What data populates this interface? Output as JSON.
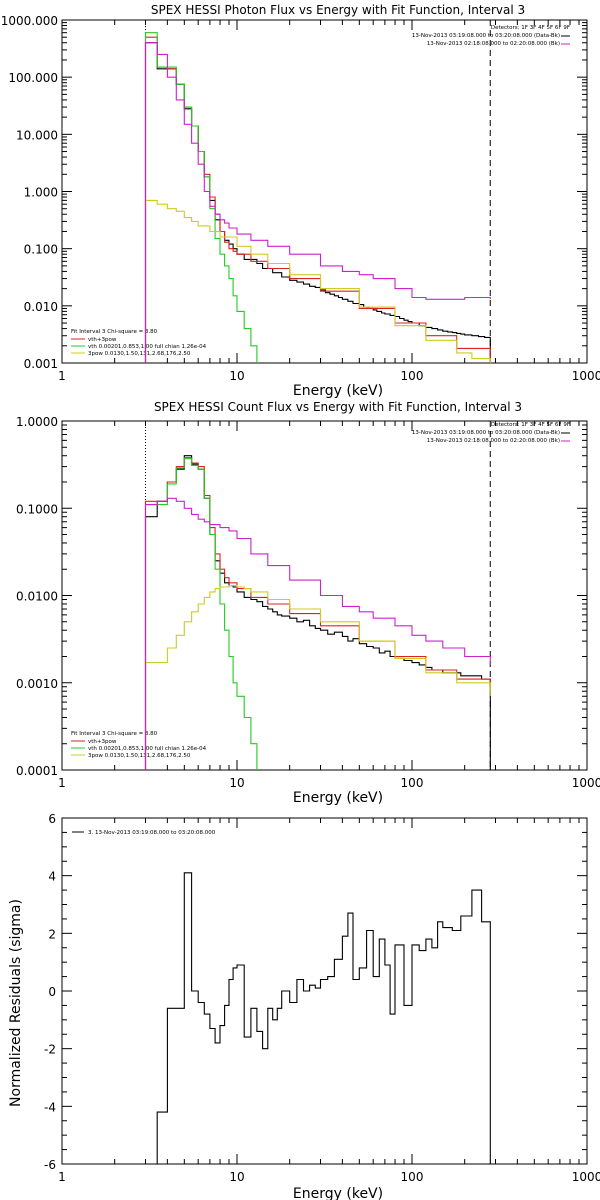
{
  "colors": {
    "black": "#000000",
    "red": "#dd2222",
    "green": "#22cc22",
    "magenta": "#cc22cc",
    "yellow": "#cccc22"
  },
  "chart_data": [
    {
      "type": "line",
      "title": "SPEX HESSI Photon Flux vs Energy with Fit Function, Interval 3",
      "xlabel": "Energy (keV)",
      "ylabel": "",
      "xscale": "log",
      "yscale": "log",
      "xlim": [
        1,
        1000
      ],
      "ylim": [
        0.001,
        1000
      ],
      "xticks": [
        "1",
        "10",
        "100",
        "1000"
      ],
      "yticks": [
        "0.001",
        "0.010",
        "0.100",
        "1.000",
        "10.000",
        "100.000",
        "1000.000"
      ],
      "top_legend": [
        "Detectors: 1F 3F 4F 5F 6F 9F",
        "13-Nov-2013 03:19:08.000 to 03:20:08.000 (Data-Bk)",
        "13-Nov-2013 02:18:08.000 to 02:20:08.000 (Bk)"
      ],
      "fit_legend": [
        "Fit Interval 3   Chi-square = 3.80",
        "vth+3pow",
        "vth 0.00201,0.853,1.00  full chian 1.26e-04",
        "3pow 0.0130,1.50,131,2.68,176,2.50"
      ],
      "series": [
        {
          "name": "data",
          "color": "black",
          "x": [
            3,
            3.5,
            4,
            4.5,
            5,
            5.5,
            6,
            6.5,
            7,
            7.5,
            8,
            8.5,
            9,
            9.5,
            10,
            11,
            12,
            13,
            14,
            15,
            16,
            17,
            18,
            19,
            20,
            22,
            24,
            26,
            28,
            30,
            32,
            34,
            36,
            38,
            40,
            43,
            46,
            50,
            53,
            56,
            60,
            63,
            67,
            70,
            75,
            80,
            85,
            90,
            95,
            100,
            110,
            120,
            130,
            140,
            150,
            160,
            170,
            180,
            190,
            200,
            220,
            240,
            260,
            280
          ],
          "y": [
            400,
            140,
            140,
            75,
            28,
            14,
            5,
            1.8,
            0.7,
            0.32,
            0.2,
            0.14,
            0.12,
            0.1,
            0.08,
            0.065,
            0.065,
            0.055,
            0.045,
            0.045,
            0.038,
            0.038,
            0.032,
            0.032,
            0.028,
            0.026,
            0.024,
            0.022,
            0.021,
            0.019,
            0.017,
            0.016,
            0.015,
            0.014,
            0.013,
            0.012,
            0.011,
            0.0105,
            0.0095,
            0.009,
            0.0085,
            0.008,
            0.0075,
            0.0072,
            0.0068,
            0.0065,
            0.006,
            0.0056,
            0.0053,
            0.005,
            0.0045,
            0.0042,
            0.004,
            0.0038,
            0.0036,
            0.0035,
            0.0034,
            0.0033,
            0.0032,
            0.0031,
            0.003,
            0.0029,
            0.0028,
            0.001
          ]
        },
        {
          "name": "vth+3pow",
          "color": "red",
          "x": [
            3,
            3.5,
            4,
            4.5,
            5,
            5.5,
            6,
            6.5,
            7,
            7.5,
            8,
            8.5,
            9,
            9.5,
            10,
            12,
            15,
            20,
            30,
            50,
            80,
            120,
            180,
            280
          ],
          "y": [
            500,
            150,
            140,
            75,
            30,
            14,
            5,
            2,
            0.8,
            0.4,
            0.2,
            0.13,
            0.1,
            0.09,
            0.08,
            0.06,
            0.045,
            0.03,
            0.018,
            0.009,
            0.005,
            0.003,
            0.0018,
            0.001
          ]
        },
        {
          "name": "vth",
          "color": "green",
          "x": [
            3,
            3.5,
            4,
            4.5,
            5,
            5.5,
            6,
            6.5,
            7,
            7.5,
            8,
            8.5,
            9,
            9.5,
            10,
            11,
            12,
            13
          ],
          "y": [
            600,
            150,
            150,
            75,
            30,
            14,
            5,
            1.8,
            0.5,
            0.15,
            0.08,
            0.05,
            0.03,
            0.015,
            0.008,
            0.004,
            0.002,
            0.001
          ]
        },
        {
          "name": "3pow",
          "color": "yellow",
          "x": [
            3,
            3.5,
            4,
            4.5,
            5,
            5.5,
            6,
            7,
            8,
            10,
            12,
            15,
            20,
            30,
            50,
            80,
            120,
            180,
            220,
            280
          ],
          "y": [
            0.7,
            0.6,
            0.5,
            0.45,
            0.35,
            0.3,
            0.25,
            0.2,
            0.16,
            0.11,
            0.08,
            0.055,
            0.035,
            0.02,
            0.0095,
            0.0045,
            0.0025,
            0.0015,
            0.0012,
            0.001
          ]
        },
        {
          "name": "background",
          "color": "magenta",
          "x": [
            3,
            3.5,
            4,
            4.5,
            5,
            5.5,
            6,
            6.5,
            7,
            7.5,
            8,
            8.5,
            9,
            10,
            12,
            15,
            20,
            30,
            40,
            50,
            60,
            80,
            100,
            120,
            150,
            200,
            280
          ],
          "y": [
            400,
            250,
            100,
            40,
            15,
            7,
            3,
            1,
            0.55,
            0.4,
            0.32,
            0.28,
            0.23,
            0.18,
            0.14,
            0.11,
            0.08,
            0.05,
            0.04,
            0.035,
            0.03,
            0.02,
            0.014,
            0.013,
            0.013,
            0.014,
            0.013
          ]
        }
      ]
    },
    {
      "type": "line",
      "title": "SPEX HESSI Count Flux vs Energy with Fit Function, Interval 3",
      "xlabel": "Energy (keV)",
      "ylabel": "",
      "xscale": "log",
      "yscale": "log",
      "xlim": [
        1,
        1000
      ],
      "ylim": [
        0.0001,
        1
      ],
      "xticks": [
        "1",
        "10",
        "100",
        "1000"
      ],
      "yticks": [
        "0.0001",
        "0.0010",
        "0.0100",
        "0.1000",
        "1.0000"
      ],
      "top_legend": [
        "Detectors: 1F 3F 4F 5F 6F 9F",
        "13-Nov-2013 03:19:08.000 to 03:20:08.000 (Data-Bk)",
        "13-Nov-2013 02:18:08.000 to 02:20:08.000 (Bk)"
      ],
      "fit_legend": [
        "Fit Interval 3   Chi-square = 3.80",
        "vth+3pow",
        "vth 0.00201,0.853,1.00  full chian 1.26e-04",
        "3pow 0.0130,1.50,131,2.68,176,2.50"
      ],
      "series": [
        {
          "name": "data",
          "color": "black",
          "x": [
            3,
            3.5,
            4,
            4.5,
            5,
            5.5,
            6,
            6.5,
            7,
            7.5,
            8,
            8.5,
            9,
            9.5,
            10,
            11,
            12,
            13,
            14,
            15,
            16,
            17,
            18,
            20,
            22,
            24,
            26,
            28,
            30,
            33,
            36,
            40,
            43,
            46,
            50,
            55,
            60,
            65,
            70,
            75,
            80,
            90,
            100,
            110,
            120,
            130,
            140,
            150,
            170,
            190,
            220,
            250,
            280
          ],
          "y": [
            0.08,
            0.12,
            0.2,
            0.28,
            0.4,
            0.32,
            0.28,
            0.13,
            0.05,
            0.025,
            0.018,
            0.014,
            0.013,
            0.0125,
            0.011,
            0.0095,
            0.009,
            0.0085,
            0.0075,
            0.007,
            0.0065,
            0.006,
            0.0058,
            0.0055,
            0.005,
            0.0052,
            0.0045,
            0.0042,
            0.004,
            0.0036,
            0.0038,
            0.0034,
            0.003,
            0.0032,
            0.0028,
            0.0026,
            0.0025,
            0.0022,
            0.0023,
            0.002,
            0.0019,
            0.0018,
            0.0017,
            0.0016,
            0.0015,
            0.0014,
            0.0014,
            0.0013,
            0.0013,
            0.0012,
            0.0012,
            0.0011,
            0.0001
          ]
        },
        {
          "name": "vth+3pow",
          "color": "red",
          "x": [
            3,
            3.5,
            4,
            4.5,
            5,
            5.5,
            6,
            6.5,
            7,
            7.5,
            8,
            8.5,
            9,
            10,
            12,
            15,
            20,
            30,
            50,
            80,
            120,
            180,
            280
          ],
          "y": [
            0.12,
            0.12,
            0.2,
            0.3,
            0.38,
            0.33,
            0.3,
            0.14,
            0.06,
            0.03,
            0.02,
            0.016,
            0.014,
            0.012,
            0.0095,
            0.008,
            0.0062,
            0.0045,
            0.003,
            0.002,
            0.0014,
            0.0011,
            0.0009
          ]
        },
        {
          "name": "vth",
          "color": "green",
          "x": [
            3,
            3.5,
            4,
            4.5,
            5,
            5.5,
            6,
            6.5,
            7,
            7.5,
            8,
            8.5,
            9,
            9.5,
            10,
            11,
            12,
            13
          ],
          "y": [
            0.11,
            0.11,
            0.19,
            0.29,
            0.37,
            0.31,
            0.28,
            0.13,
            0.05,
            0.02,
            0.008,
            0.004,
            0.002,
            0.001,
            0.0007,
            0.0004,
            0.0002,
            0.0001
          ]
        },
        {
          "name": "3pow",
          "color": "yellow",
          "x": [
            3,
            3.5,
            4,
            4.5,
            5,
            5.5,
            6,
            6.5,
            7,
            7.5,
            8,
            9,
            10,
            11,
            12,
            15,
            20,
            30,
            50,
            80,
            120,
            180,
            280
          ],
          "y": [
            0.0017,
            0.0017,
            0.0025,
            0.0035,
            0.005,
            0.0065,
            0.008,
            0.0095,
            0.011,
            0.012,
            0.0125,
            0.013,
            0.0125,
            0.012,
            0.011,
            0.009,
            0.007,
            0.005,
            0.003,
            0.0019,
            0.0013,
            0.001,
            0.0007
          ]
        },
        {
          "name": "background",
          "color": "magenta",
          "x": [
            3,
            3.5,
            4,
            4.5,
            5,
            5.5,
            6,
            6.5,
            7,
            8,
            9,
            10,
            12,
            15,
            20,
            30,
            40,
            50,
            60,
            80,
            100,
            120,
            150,
            200,
            280
          ],
          "y": [
            0.11,
            0.12,
            0.13,
            0.12,
            0.1,
            0.085,
            0.075,
            0.07,
            0.065,
            0.06,
            0.055,
            0.045,
            0.03,
            0.022,
            0.015,
            0.01,
            0.0075,
            0.0065,
            0.0055,
            0.0045,
            0.0035,
            0.003,
            0.0025,
            0.002,
            0.0016
          ]
        }
      ]
    },
    {
      "type": "line",
      "title": "",
      "xlabel": "Energy (keV)",
      "ylabel": "Normalized Residuals (sigma)",
      "xscale": "log",
      "xlim": [
        1,
        1000
      ],
      "ylim": [
        -6,
        6
      ],
      "xticks": [
        "1",
        "10",
        "100",
        "1000"
      ],
      "yticks": [
        "-6",
        "-4",
        "-2",
        "0",
        "2",
        "4",
        "6"
      ],
      "legend": [
        "3. 13-Nov-2013 03:19:08.000 to 03:20:08.000"
      ],
      "series": [
        {
          "name": "",
          "color": "black",
          "x": [
            3,
            3.5,
            4,
            4.5,
            5,
            5.5,
            6,
            6.5,
            7,
            7.5,
            8,
            8.5,
            9,
            9.5,
            10,
            11,
            12,
            13,
            14,
            15,
            16,
            17,
            18,
            20,
            22,
            24,
            26,
            28,
            30,
            33,
            36,
            40,
            43,
            46,
            50,
            55,
            60,
            65,
            70,
            75,
            80,
            90,
            100,
            110,
            120,
            130,
            140,
            150,
            170,
            190,
            220,
            250,
            280
          ],
          "y": [
            -6,
            -4.2,
            -0.6,
            -0.6,
            4.1,
            0,
            -0.4,
            -0.8,
            -1.3,
            -1.8,
            -1.2,
            -0.5,
            0.4,
            0.8,
            0.9,
            -1.6,
            -0.6,
            -1.4,
            -2,
            -0.6,
            -1,
            -0.6,
            0,
            -0.4,
            0.4,
            0,
            0.2,
            0.1,
            0.4,
            0.5,
            1.1,
            1.9,
            2.7,
            0.4,
            0.8,
            2.1,
            0.5,
            1.8,
            0.9,
            -0.8,
            1.6,
            -0.5,
            1.6,
            1.4,
            1.8,
            1.5,
            2.4,
            2.2,
            2.1,
            2.6,
            3.5,
            2.4,
            -6
          ]
        }
      ]
    }
  ]
}
